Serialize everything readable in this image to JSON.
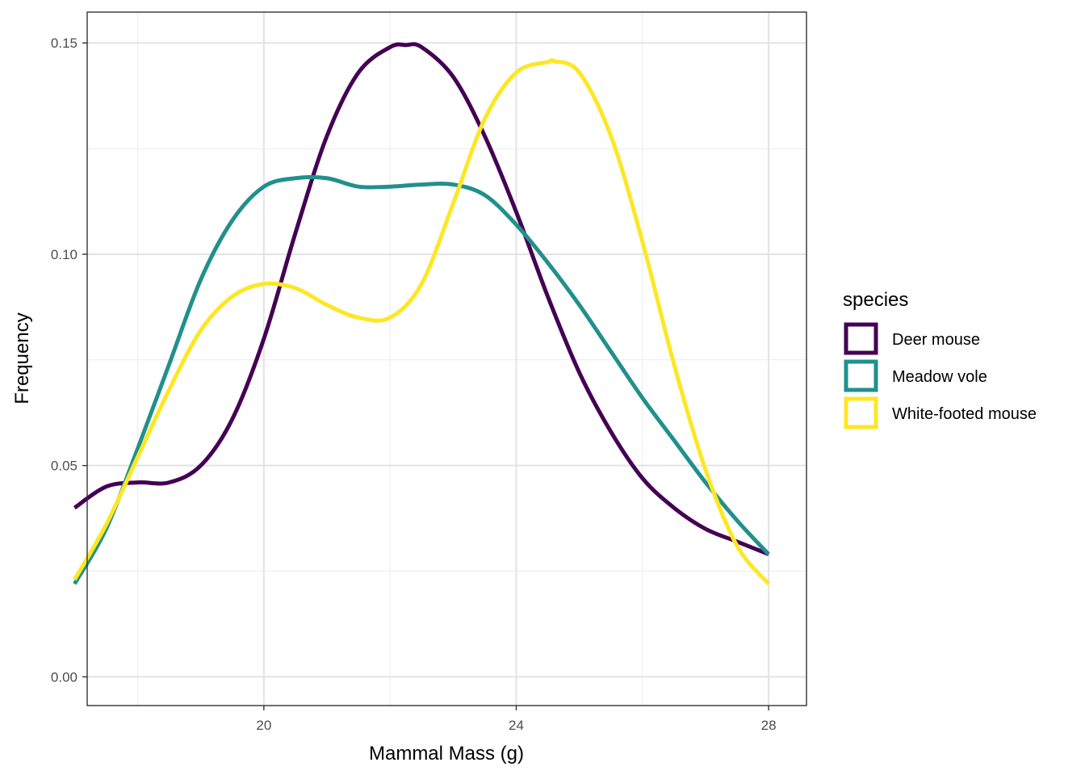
{
  "chart_data": {
    "type": "line",
    "xlabel": "Mammal Mass (g)",
    "ylabel": "Frequency",
    "xlim": [
      17.2,
      28.6
    ],
    "ylim": [
      -0.0068,
      0.1573
    ],
    "x_ticks": [
      {
        "value": 20,
        "label": "20"
      },
      {
        "value": 24,
        "label": "24"
      },
      {
        "value": 28,
        "label": "28"
      }
    ],
    "x_minor": [
      18,
      22,
      26
    ],
    "y_ticks": [
      {
        "value": 0.0,
        "label": "0.00"
      },
      {
        "value": 0.05,
        "label": "0.05"
      },
      {
        "value": 0.1,
        "label": "0.10"
      },
      {
        "value": 0.15,
        "label": "0.15"
      }
    ],
    "y_minor": [
      0.025,
      0.075,
      0.125
    ],
    "grid": true,
    "legend": {
      "title": "species",
      "position": "right"
    },
    "series": [
      {
        "name": "Deer mouse",
        "color": "#440154",
        "x": [
          17.0,
          17.5,
          18.0,
          18.5,
          19.0,
          19.5,
          20.0,
          20.5,
          21.0,
          21.5,
          22.0,
          22.25,
          22.5,
          23.0,
          23.5,
          24.0,
          24.5,
          25.0,
          25.5,
          26.0,
          26.5,
          27.0,
          27.5,
          28.0
        ],
        "y": [
          0.04,
          0.045,
          0.046,
          0.046,
          0.05,
          0.061,
          0.08,
          0.105,
          0.128,
          0.143,
          0.149,
          0.1495,
          0.149,
          0.142,
          0.128,
          0.11,
          0.09,
          0.072,
          0.058,
          0.047,
          0.04,
          0.035,
          0.032,
          0.029
        ]
      },
      {
        "name": "Meadow vole",
        "color": "#21908C",
        "x": [
          17.0,
          17.5,
          18.0,
          18.5,
          19.0,
          19.5,
          20.0,
          20.5,
          21.0,
          21.5,
          22.0,
          22.5,
          23.0,
          23.5,
          24.0,
          24.5,
          25.0,
          25.5,
          26.0,
          26.5,
          27.0,
          27.5,
          28.0
        ],
        "y": [
          0.022,
          0.035,
          0.054,
          0.074,
          0.094,
          0.108,
          0.116,
          0.118,
          0.118,
          0.116,
          0.116,
          0.1165,
          0.1165,
          0.114,
          0.107,
          0.098,
          0.088,
          0.077,
          0.066,
          0.056,
          0.046,
          0.037,
          0.029
        ]
      },
      {
        "name": "White-footed mouse",
        "color": "#FDE725",
        "x": [
          17.0,
          17.5,
          18.0,
          18.5,
          19.0,
          19.5,
          20.0,
          20.5,
          21.0,
          21.5,
          22.0,
          22.5,
          23.0,
          23.5,
          24.0,
          24.5,
          24.6,
          25.0,
          25.5,
          26.0,
          26.5,
          27.0,
          27.5,
          28.0
        ],
        "y": [
          0.023,
          0.036,
          0.052,
          0.068,
          0.082,
          0.09,
          0.093,
          0.092,
          0.088,
          0.085,
          0.085,
          0.093,
          0.112,
          0.132,
          0.143,
          0.1455,
          0.1457,
          0.143,
          0.128,
          0.103,
          0.074,
          0.049,
          0.031,
          0.022
        ]
      }
    ]
  }
}
